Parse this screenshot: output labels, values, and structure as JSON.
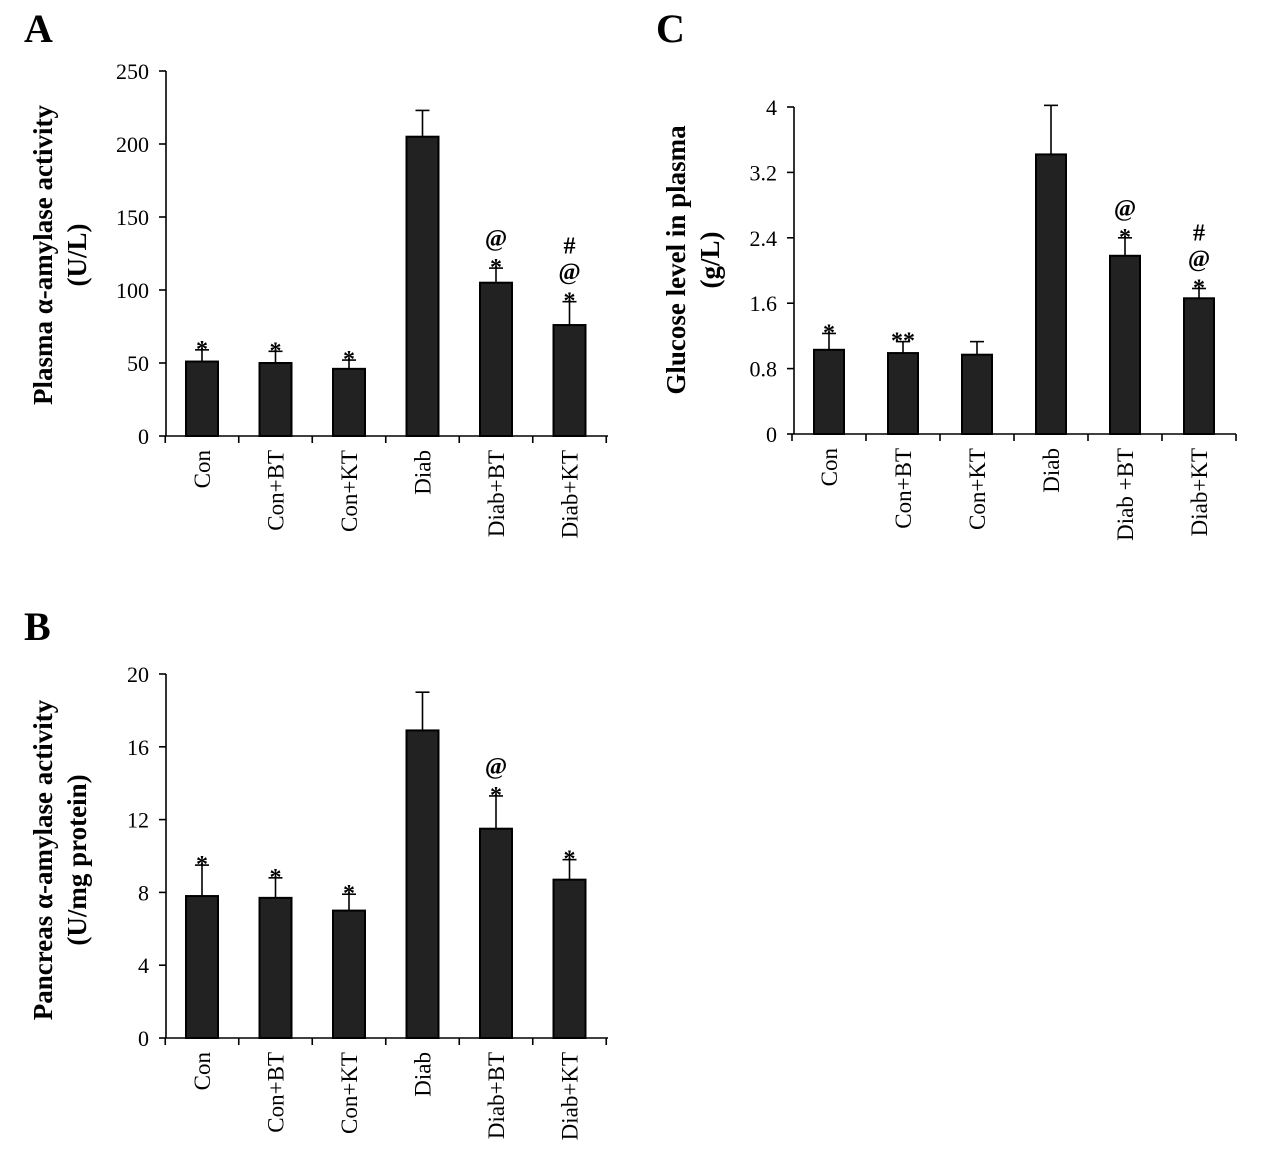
{
  "chart_data": [
    {
      "type": "bar",
      "panel": "A",
      "ylabel_lines": [
        "Plasma α-amylase activity",
        "(U/L)"
      ],
      "categories": [
        "Con",
        "Con+BT",
        "Con+KT",
        "Diab",
        "Diab+BT",
        "Diab+KT"
      ],
      "values": [
        51,
        50,
        46,
        205,
        105,
        76
      ],
      "errors": [
        8,
        8,
        6,
        18,
        10,
        16
      ],
      "annotations": [
        [
          "*"
        ],
        [
          "*"
        ],
        [
          "*"
        ],
        [],
        [
          "*",
          "@"
        ],
        [
          "*",
          "@",
          "#"
        ]
      ],
      "ylim": [
        0,
        250
      ],
      "yticks": [
        0,
        50,
        100,
        150,
        200,
        250
      ],
      "ytick_labels": [
        "0",
        "50",
        "100",
        "150",
        "200",
        "250"
      ]
    },
    {
      "type": "bar",
      "panel": "B",
      "ylabel_lines": [
        "Pancreas α-amylase activity",
        "(U/mg protein)"
      ],
      "categories": [
        "Con",
        "Con+BT",
        "Con+KT",
        "Diab",
        "Diab+BT",
        "Diab+KT"
      ],
      "values": [
        7.8,
        7.7,
        7.0,
        16.9,
        11.5,
        8.7
      ],
      "errors": [
        1.7,
        1.1,
        0.9,
        2.1,
        1.8,
        1.1
      ],
      "annotations": [
        [
          "*"
        ],
        [
          "*"
        ],
        [
          "*"
        ],
        [],
        [
          "*",
          "@"
        ],
        [
          "*"
        ]
      ],
      "ylim": [
        0,
        20
      ],
      "yticks": [
        0,
        4,
        8,
        12,
        16,
        20
      ],
      "ytick_labels": [
        "0",
        "4",
        "8",
        "12",
        "16",
        "20"
      ]
    },
    {
      "type": "bar",
      "panel": "C",
      "ylabel_lines": [
        "Glucose level in plasma",
        "(g/L)"
      ],
      "categories": [
        "Con",
        "Con+BT",
        "Con+KT",
        "Diab",
        "Diab +BT",
        "Diab+KT"
      ],
      "values": [
        1.03,
        0.99,
        0.97,
        3.42,
        2.18,
        1.66
      ],
      "errors": [
        0.2,
        0.14,
        0.16,
        0.6,
        0.22,
        0.12
      ],
      "annotations": [
        [
          "*"
        ],
        [
          "**"
        ],
        [],
        [],
        [
          "*",
          "@"
        ],
        [
          "*",
          "@",
          "#"
        ]
      ],
      "ylim": [
        0,
        4
      ],
      "yticks": [
        0,
        0.8,
        1.6,
        2.4,
        3.2,
        4
      ],
      "ytick_labels": [
        "0",
        "0.8",
        "1.6",
        "2.4",
        "3.2",
        "4"
      ]
    }
  ]
}
